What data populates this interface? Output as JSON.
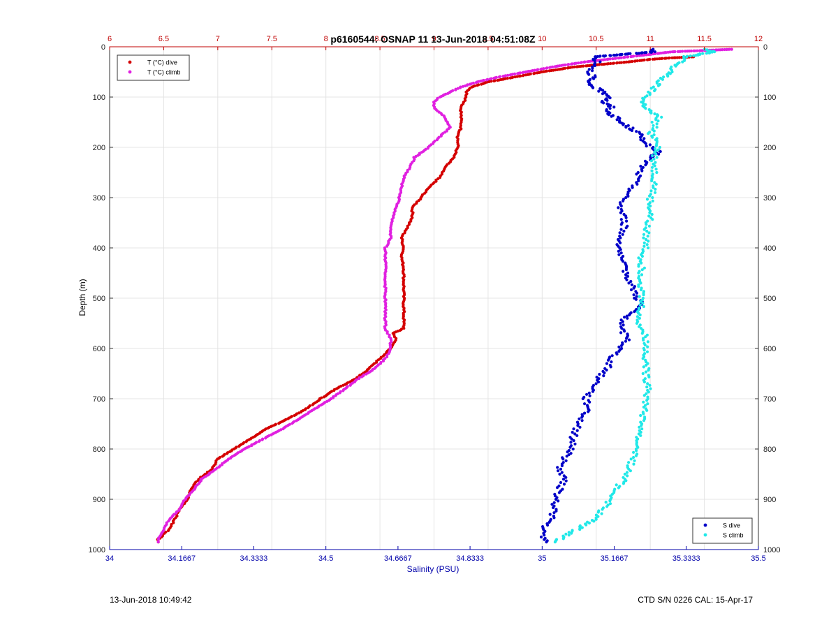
{
  "chart_data": {
    "type": "scatter",
    "title": "p6160544: OSNAP 11 13-Jun-2018 04:51:08Z",
    "ylabel": "Depth (m)",
    "xlabel": "Salinity (PSU)",
    "ylim": [
      0,
      1000
    ],
    "yticks": [
      "0",
      "100",
      "200",
      "300",
      "400",
      "500",
      "600",
      "700",
      "800",
      "900",
      "1000"
    ],
    "temp_axis": {
      "range": [
        6,
        12
      ],
      "ticks": [
        "6",
        "6.5",
        "7",
        "7.5",
        "8",
        "8.5",
        "9",
        "9.5",
        "10",
        "10.5",
        "11",
        "11.5",
        "12"
      ],
      "color": "#c00000"
    },
    "sal_axis": {
      "range": [
        34,
        35.5
      ],
      "ticks": [
        "34",
        "34.1667",
        "34.3333",
        "34.5",
        "34.6667",
        "34.8333",
        "35",
        "35.1667",
        "35.3333",
        "35.5"
      ],
      "color": "#0000aa"
    },
    "grid": true,
    "legends": {
      "temperature": {
        "placement": "top-left",
        "entries": [
          "T (°C) dive",
          "T (°C) climb"
        ]
      },
      "salinity": {
        "placement": "bottom-right",
        "entries": [
          "S dive",
          "S climb"
        ]
      }
    },
    "series": [
      {
        "name": "T (°C) dive",
        "axis": "temp",
        "color": "#d40000",
        "depth": [
          20,
          22,
          25,
          30,
          40,
          50,
          60,
          70,
          80,
          90,
          100,
          110,
          120,
          140,
          160,
          180,
          200,
          220,
          240,
          260,
          280,
          300,
          320,
          340,
          360,
          380,
          400,
          420,
          440,
          460,
          480,
          500,
          520,
          540,
          560,
          570,
          580,
          600,
          620,
          640,
          660,
          680,
          700,
          720,
          740,
          760,
          780,
          800,
          820,
          840,
          860,
          880,
          900,
          920,
          940,
          960,
          980,
          985
        ],
        "values": [
          11.4,
          11.2,
          11.0,
          10.8,
          10.3,
          10.0,
          9.75,
          9.5,
          9.35,
          9.3,
          9.3,
          9.28,
          9.25,
          9.25,
          9.25,
          9.22,
          9.22,
          9.18,
          9.1,
          9.05,
          8.95,
          8.88,
          8.8,
          8.8,
          8.75,
          8.7,
          8.72,
          8.7,
          8.72,
          8.72,
          8.72,
          8.72,
          8.72,
          8.72,
          8.72,
          8.62,
          8.65,
          8.6,
          8.5,
          8.4,
          8.28,
          8.1,
          7.95,
          7.82,
          7.65,
          7.45,
          7.3,
          7.15,
          7.0,
          6.95,
          6.82,
          6.75,
          6.72,
          6.65,
          6.6,
          6.55,
          6.45,
          6.45
        ]
      },
      {
        "name": "T (°C) climb",
        "axis": "temp",
        "color": "#e020e0",
        "depth": [
          5,
          10,
          15,
          20,
          25,
          30,
          40,
          50,
          60,
          70,
          80,
          90,
          100,
          110,
          120,
          140,
          160,
          180,
          200,
          220,
          240,
          260,
          280,
          300,
          320,
          340,
          360,
          380,
          400,
          420,
          440,
          460,
          480,
          500,
          520,
          540,
          560,
          580,
          600,
          620,
          640,
          660,
          680,
          700,
          720,
          740,
          760,
          780,
          800,
          820,
          840,
          860,
          880,
          900,
          920,
          940,
          960,
          980,
          985
        ],
        "values": [
          11.75,
          11.2,
          11.0,
          10.8,
          10.6,
          10.4,
          10.1,
          9.85,
          9.6,
          9.4,
          9.25,
          9.15,
          9.05,
          9.0,
          9.0,
          9.1,
          9.15,
          9.05,
          8.95,
          8.82,
          8.78,
          8.72,
          8.7,
          8.68,
          8.65,
          8.62,
          8.6,
          8.6,
          8.55,
          8.55,
          8.55,
          8.55,
          8.55,
          8.55,
          8.55,
          8.55,
          8.55,
          8.6,
          8.6,
          8.55,
          8.45,
          8.3,
          8.18,
          8.05,
          7.9,
          7.75,
          7.6,
          7.42,
          7.25,
          7.1,
          6.98,
          6.85,
          6.78,
          6.7,
          6.65,
          6.55,
          6.5,
          6.45,
          6.45
        ]
      },
      {
        "name": "S dive",
        "axis": "sal",
        "color": "#0000c8",
        "depth": [
          5,
          10,
          20,
          30,
          40,
          50,
          60,
          70,
          80,
          90,
          100,
          110,
          120,
          130,
          140,
          150,
          160,
          170,
          180,
          190,
          200,
          210,
          220,
          230,
          240,
          260,
          280,
          300,
          320,
          340,
          360,
          380,
          400,
          420,
          440,
          460,
          480,
          500,
          510,
          520,
          540,
          560,
          580,
          600,
          620,
          640,
          660,
          680,
          700,
          720,
          740,
          760,
          780,
          800,
          820,
          840,
          860,
          880,
          900,
          920,
          940,
          960,
          975,
          985
        ],
        "values": [
          35.25,
          35.26,
          35.12,
          35.13,
          35.12,
          35.11,
          35.12,
          35.1,
          35.12,
          35.14,
          35.16,
          35.14,
          35.16,
          35.15,
          35.17,
          35.18,
          35.2,
          35.22,
          35.23,
          35.24,
          35.25,
          35.27,
          35.25,
          35.24,
          35.23,
          35.22,
          35.21,
          35.19,
          35.18,
          35.19,
          35.19,
          35.18,
          35.18,
          35.18,
          35.19,
          35.2,
          35.21,
          35.22,
          35.23,
          35.22,
          35.19,
          35.18,
          35.2,
          35.18,
          35.16,
          35.15,
          35.13,
          35.12,
          35.1,
          35.11,
          35.09,
          35.08,
          35.07,
          35.07,
          35.05,
          35.04,
          35.05,
          35.04,
          35.03,
          35.03,
          35.02,
          35.0,
          35.0,
          35.01
        ]
      },
      {
        "name": "S climb",
        "axis": "sal",
        "color": "#20e8e8",
        "depth": [
          5,
          10,
          20,
          30,
          40,
          50,
          60,
          70,
          80,
          90,
          100,
          110,
          120,
          130,
          140,
          150,
          160,
          170,
          180,
          190,
          200,
          210,
          220,
          230,
          240,
          260,
          280,
          300,
          320,
          340,
          360,
          380,
          400,
          420,
          440,
          460,
          480,
          500,
          520,
          540,
          560,
          580,
          600,
          620,
          640,
          660,
          680,
          700,
          720,
          740,
          760,
          780,
          800,
          820,
          840,
          860,
          880,
          900,
          920,
          940,
          960,
          975,
          985
        ],
        "values": [
          35.38,
          35.4,
          35.33,
          35.32,
          35.3,
          35.3,
          35.28,
          35.27,
          35.26,
          35.25,
          35.24,
          35.23,
          35.24,
          35.25,
          35.27,
          35.26,
          35.26,
          35.25,
          35.26,
          35.27,
          35.27,
          35.26,
          35.26,
          35.26,
          35.26,
          35.26,
          35.26,
          35.25,
          35.25,
          35.25,
          35.24,
          35.24,
          35.24,
          35.23,
          35.23,
          35.23,
          35.23,
          35.23,
          35.23,
          35.22,
          35.23,
          35.24,
          35.24,
          35.24,
          35.24,
          35.24,
          35.25,
          35.24,
          35.24,
          35.23,
          35.23,
          35.22,
          35.22,
          35.21,
          35.2,
          35.19,
          35.17,
          35.16,
          35.14,
          35.12,
          35.08,
          35.05,
          35.03
        ]
      }
    ]
  },
  "footer": {
    "left": "13-Jun-2018 10:49:42",
    "right": "CTD S/N 0226  CAL: 15-Apr-17"
  }
}
